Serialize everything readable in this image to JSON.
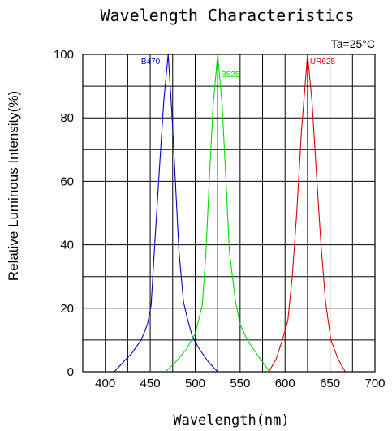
{
  "chart_data": {
    "type": "line",
    "title": "Wavelength Characteristics",
    "xlabel": "Wavelength(nm)",
    "ylabel": "Relative Luminous Intensity(%)",
    "annotation": "Ta=25°C",
    "xlim": [
      375,
      700
    ],
    "ylim": [
      0,
      100
    ],
    "x_ticks": [
      400,
      450,
      500,
      550,
      600,
      650,
      700
    ],
    "y_ticks": [
      0,
      20,
      40,
      60,
      80,
      100
    ],
    "grid": true,
    "series": [
      {
        "name": "B470",
        "color": "#0000cc",
        "x": [
          410,
          420,
          430,
          440,
          447,
          451,
          455,
          460,
          465,
          470,
          474,
          478,
          482,
          487,
          492,
          497,
          505,
          515,
          525
        ],
        "y": [
          0,
          3,
          6,
          10,
          15,
          21,
          40,
          63,
          85,
          100,
          82,
          60,
          38,
          22,
          16,
          11,
          7,
          3,
          0
        ]
      },
      {
        "name": "B525",
        "color": "#00dd00",
        "x": [
          467,
          478,
          490,
          500,
          508,
          512,
          516,
          520,
          525,
          530,
          534,
          538,
          545,
          550,
          558,
          570,
          583
        ],
        "y": [
          0,
          3,
          7,
          12,
          21,
          38,
          62,
          84,
          100,
          84,
          62,
          38,
          22,
          15,
          10,
          5,
          0
        ]
      },
      {
        "name": "UR625",
        "color": "#dd0000",
        "x": [
          582,
          590,
          597,
          603,
          608,
          613,
          618,
          625,
          630,
          635,
          640,
          645,
          651,
          659,
          667
        ],
        "y": [
          0,
          4,
          10,
          16,
          30,
          50,
          75,
          100,
          85,
          62,
          40,
          22,
          10,
          4,
          0
        ]
      }
    ]
  }
}
